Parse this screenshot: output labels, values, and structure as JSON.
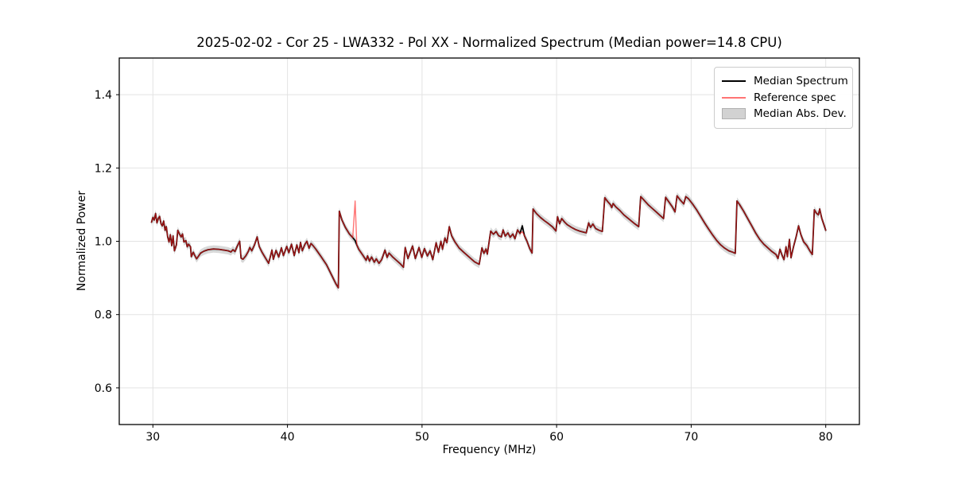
{
  "title": "2025-02-02 - Cor 25 - LWA332 - Pol XX - Normalized Spectrum (Median power=14.8 CPU)",
  "legend": {
    "items": [
      {
        "label": "Median Spectrum",
        "swatch": "line",
        "color": "#000000"
      },
      {
        "label": "Reference spec",
        "swatch": "line",
        "color": "rgba(255,30,30,0.62)"
      },
      {
        "label": "Median Abs. Dev.",
        "swatch": "patch",
        "color": "#d2d2d2",
        "border": "#b0b0b0"
      }
    ]
  },
  "chart_data": {
    "type": "line",
    "title": "2025-02-02 - Cor 25 - LWA332 - Pol XX - Normalized Spectrum (Median power=14.8 CPU)",
    "xlabel": "Frequency (MHz)",
    "ylabel": "Normalized Power",
    "xlim": [
      27.5,
      82.5
    ],
    "ylim": [
      0.5,
      1.5
    ],
    "xticks": [
      "30",
      "40",
      "50",
      "60",
      "70",
      "80"
    ],
    "yticks": [
      "0.6",
      "0.8",
      "1.0",
      "1.2",
      "1.4"
    ],
    "grid": true,
    "grid_color": "#e3e3e3",
    "legend_position": "upper right",
    "band": {
      "name": "Median Abs. Dev.",
      "around": "Median Spectrum",
      "halfwidth": 0.01,
      "color": "#9e9e9e",
      "alpha": 0.4
    },
    "series": [
      {
        "name": "Median Spectrum",
        "color": "#000000",
        "linewidth": 1.8,
        "points": [
          [
            29.9,
            1.052
          ],
          [
            30.0,
            1.065
          ],
          [
            30.1,
            1.058
          ],
          [
            30.2,
            1.076
          ],
          [
            30.3,
            1.05
          ],
          [
            30.4,
            1.062
          ],
          [
            30.5,
            1.068
          ],
          [
            30.6,
            1.048
          ],
          [
            30.7,
            1.042
          ],
          [
            30.8,
            1.055
          ],
          [
            30.9,
            1.03
          ],
          [
            31.0,
            1.04
          ],
          [
            31.1,
            1.012
          ],
          [
            31.2,
            0.998
          ],
          [
            31.3,
            1.018
          ],
          [
            31.4,
            0.988
          ],
          [
            31.5,
            1.015
          ],
          [
            31.6,
            0.974
          ],
          [
            31.75,
            0.99
          ],
          [
            31.85,
            1.03
          ],
          [
            32.0,
            1.018
          ],
          [
            32.1,
            1.012
          ],
          [
            32.2,
            1.02
          ],
          [
            32.3,
            0.998
          ],
          [
            32.45,
            1.002
          ],
          [
            32.55,
            0.985
          ],
          [
            32.65,
            0.992
          ],
          [
            32.8,
            0.985
          ],
          [
            32.85,
            0.958
          ],
          [
            33.0,
            0.97
          ],
          [
            33.1,
            0.962
          ],
          [
            33.25,
            0.952
          ],
          [
            33.4,
            0.96
          ],
          [
            33.55,
            0.968
          ],
          [
            33.8,
            0.973
          ],
          [
            34.1,
            0.977
          ],
          [
            34.5,
            0.979
          ],
          [
            34.9,
            0.978
          ],
          [
            35.3,
            0.976
          ],
          [
            35.6,
            0.974
          ],
          [
            35.8,
            0.971
          ],
          [
            35.95,
            0.977
          ],
          [
            36.1,
            0.972
          ],
          [
            36.25,
            0.985
          ],
          [
            36.45,
            1.0
          ],
          [
            36.55,
            0.954
          ],
          [
            36.7,
            0.951
          ],
          [
            36.9,
            0.96
          ],
          [
            37.1,
            0.973
          ],
          [
            37.2,
            0.983
          ],
          [
            37.35,
            0.974
          ],
          [
            37.55,
            0.99
          ],
          [
            37.75,
            1.012
          ],
          [
            37.9,
            0.986
          ],
          [
            38.1,
            0.971
          ],
          [
            38.35,
            0.955
          ],
          [
            38.6,
            0.94
          ],
          [
            38.85,
            0.976
          ],
          [
            38.95,
            0.951
          ],
          [
            39.15,
            0.975
          ],
          [
            39.35,
            0.957
          ],
          [
            39.55,
            0.982
          ],
          [
            39.7,
            0.961
          ],
          [
            39.95,
            0.986
          ],
          [
            40.1,
            0.969
          ],
          [
            40.3,
            0.992
          ],
          [
            40.5,
            0.961
          ],
          [
            40.7,
            0.99
          ],
          [
            40.85,
            0.969
          ],
          [
            40.97,
            0.997
          ],
          [
            41.1,
            0.974
          ],
          [
            41.3,
            0.992
          ],
          [
            41.45,
            1.0
          ],
          [
            41.6,
            0.981
          ],
          [
            41.75,
            0.994
          ],
          [
            41.9,
            0.988
          ],
          [
            42.1,
            0.979
          ],
          [
            42.5,
            0.958
          ],
          [
            42.9,
            0.936
          ],
          [
            43.3,
            0.906
          ],
          [
            43.6,
            0.884
          ],
          [
            43.78,
            0.873
          ],
          [
            43.85,
            1.082
          ],
          [
            44.05,
            1.058
          ],
          [
            44.3,
            1.038
          ],
          [
            44.6,
            1.02
          ],
          [
            44.85,
            1.01
          ],
          [
            45.03,
            1.002
          ],
          [
            45.15,
            0.99
          ],
          [
            45.3,
            0.978
          ],
          [
            45.45,
            0.97
          ],
          [
            45.6,
            0.962
          ],
          [
            45.85,
            0.948
          ],
          [
            45.95,
            0.96
          ],
          [
            46.1,
            0.946
          ],
          [
            46.25,
            0.957
          ],
          [
            46.45,
            0.943
          ],
          [
            46.6,
            0.952
          ],
          [
            46.8,
            0.94
          ],
          [
            47.0,
            0.95
          ],
          [
            47.25,
            0.976
          ],
          [
            47.4,
            0.956
          ],
          [
            47.55,
            0.968
          ],
          [
            47.8,
            0.958
          ],
          [
            48.1,
            0.948
          ],
          [
            48.4,
            0.938
          ],
          [
            48.62,
            0.929
          ],
          [
            48.75,
            0.983
          ],
          [
            48.95,
            0.953
          ],
          [
            49.3,
            0.987
          ],
          [
            49.5,
            0.953
          ],
          [
            49.78,
            0.983
          ],
          [
            49.98,
            0.956
          ],
          [
            50.18,
            0.98
          ],
          [
            50.4,
            0.96
          ],
          [
            50.6,
            0.974
          ],
          [
            50.8,
            0.95
          ],
          [
            51.05,
            0.996
          ],
          [
            51.22,
            0.97
          ],
          [
            51.4,
            1.0
          ],
          [
            51.52,
            0.978
          ],
          [
            51.7,
            1.009
          ],
          [
            51.85,
            0.996
          ],
          [
            52.02,
            1.04
          ],
          [
            52.2,
            1.015
          ],
          [
            52.45,
            0.998
          ],
          [
            52.75,
            0.982
          ],
          [
            53.1,
            0.97
          ],
          [
            53.5,
            0.957
          ],
          [
            53.9,
            0.944
          ],
          [
            54.25,
            0.937
          ],
          [
            54.45,
            0.982
          ],
          [
            54.6,
            0.967
          ],
          [
            54.75,
            0.979
          ],
          [
            54.85,
            0.965
          ],
          [
            55.1,
            1.028
          ],
          [
            55.3,
            1.019
          ],
          [
            55.5,
            1.027
          ],
          [
            55.7,
            1.015
          ],
          [
            55.9,
            1.012
          ],
          [
            56.02,
            1.031
          ],
          [
            56.18,
            1.014
          ],
          [
            56.38,
            1.023
          ],
          [
            56.55,
            1.011
          ],
          [
            56.75,
            1.02
          ],
          [
            56.9,
            1.007
          ],
          [
            57.1,
            1.031
          ],
          [
            57.28,
            1.021
          ],
          [
            57.45,
            1.042
          ],
          [
            57.6,
            1.016
          ],
          [
            57.8,
            1.0
          ],
          [
            58.0,
            0.98
          ],
          [
            58.18,
            0.968
          ],
          [
            58.25,
            1.088
          ],
          [
            58.5,
            1.076
          ],
          [
            58.8,
            1.065
          ],
          [
            59.1,
            1.056
          ],
          [
            59.4,
            1.048
          ],
          [
            59.7,
            1.039
          ],
          [
            59.95,
            1.028
          ],
          [
            60.07,
            1.067
          ],
          [
            60.22,
            1.048
          ],
          [
            60.38,
            1.062
          ],
          [
            60.6,
            1.052
          ],
          [
            60.8,
            1.045
          ],
          [
            61.1,
            1.038
          ],
          [
            61.4,
            1.032
          ],
          [
            61.7,
            1.028
          ],
          [
            62.0,
            1.025
          ],
          [
            62.2,
            1.023
          ],
          [
            62.38,
            1.05
          ],
          [
            62.52,
            1.038
          ],
          [
            62.7,
            1.047
          ],
          [
            62.9,
            1.035
          ],
          [
            63.15,
            1.03
          ],
          [
            63.4,
            1.027
          ],
          [
            63.58,
            1.119
          ],
          [
            63.8,
            1.108
          ],
          [
            64.0,
            1.1
          ],
          [
            64.1,
            1.092
          ],
          [
            64.2,
            1.103
          ],
          [
            64.4,
            1.094
          ],
          [
            64.7,
            1.084
          ],
          [
            65.0,
            1.072
          ],
          [
            65.4,
            1.06
          ],
          [
            65.8,
            1.048
          ],
          [
            66.1,
            1.04
          ],
          [
            66.25,
            1.122
          ],
          [
            66.5,
            1.112
          ],
          [
            66.8,
            1.1
          ],
          [
            67.1,
            1.09
          ],
          [
            67.4,
            1.08
          ],
          [
            67.7,
            1.07
          ],
          [
            67.95,
            1.062
          ],
          [
            68.1,
            1.12
          ],
          [
            68.35,
            1.107
          ],
          [
            68.6,
            1.094
          ],
          [
            68.8,
            1.08
          ],
          [
            68.95,
            1.124
          ],
          [
            69.2,
            1.112
          ],
          [
            69.45,
            1.102
          ],
          [
            69.6,
            1.122
          ],
          [
            69.8,
            1.116
          ],
          [
            70.1,
            1.102
          ],
          [
            70.4,
            1.086
          ],
          [
            70.7,
            1.068
          ],
          [
            71.0,
            1.05
          ],
          [
            71.3,
            1.033
          ],
          [
            71.6,
            1.017
          ],
          [
            71.9,
            1.002
          ],
          [
            72.2,
            0.99
          ],
          [
            72.5,
            0.981
          ],
          [
            72.8,
            0.974
          ],
          [
            73.1,
            0.97
          ],
          [
            73.28,
            0.967
          ],
          [
            73.4,
            1.11
          ],
          [
            73.6,
            1.1
          ],
          [
            73.9,
            1.082
          ],
          [
            74.2,
            1.062
          ],
          [
            74.5,
            1.042
          ],
          [
            74.8,
            1.022
          ],
          [
            75.1,
            1.005
          ],
          [
            75.4,
            0.992
          ],
          [
            75.7,
            0.982
          ],
          [
            76.0,
            0.972
          ],
          [
            76.3,
            0.964
          ],
          [
            76.45,
            0.953
          ],
          [
            76.6,
            0.978
          ],
          [
            76.75,
            0.962
          ],
          [
            76.9,
            0.95
          ],
          [
            77.05,
            0.985
          ],
          [
            77.15,
            0.958
          ],
          [
            77.3,
            1.005
          ],
          [
            77.42,
            0.955
          ],
          [
            77.6,
            0.985
          ],
          [
            77.8,
            1.012
          ],
          [
            77.98,
            1.042
          ],
          [
            78.15,
            1.018
          ],
          [
            78.35,
            0.999
          ],
          [
            78.6,
            0.988
          ],
          [
            78.85,
            0.972
          ],
          [
            79.0,
            0.964
          ],
          [
            79.15,
            1.086
          ],
          [
            79.3,
            1.077
          ],
          [
            79.45,
            1.072
          ],
          [
            79.55,
            1.088
          ],
          [
            79.7,
            1.063
          ],
          [
            79.85,
            1.047
          ],
          [
            80.0,
            1.03
          ]
        ]
      },
      {
        "name": "Reference spec",
        "color": "rgba(255,30,30,0.62)",
        "linewidth": 1.4,
        "base": "Median Spectrum",
        "overrides": [
          [
            45.03,
            1.11
          ],
          [
            57.45,
            1.026
          ]
        ]
      }
    ]
  }
}
